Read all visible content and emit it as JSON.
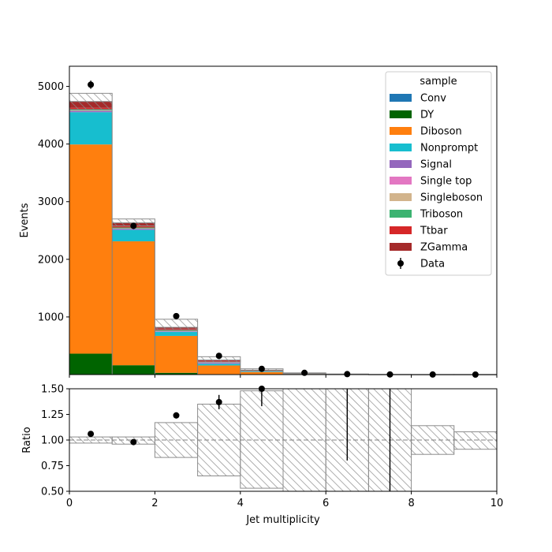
{
  "chart_data": {
    "type": "bar",
    "stacked": true,
    "x_edges": [
      0,
      1,
      2,
      3,
      4,
      5,
      6,
      7,
      8,
      9,
      10
    ],
    "xlabel": "Jet multiplicity",
    "xlim": [
      0,
      10
    ],
    "x_ticks": [
      0,
      2,
      4,
      6,
      8,
      10
    ],
    "main": {
      "ylabel": "Events",
      "ylim": [
        0,
        5350
      ],
      "y_ticks": [
        1000,
        2000,
        3000,
        4000,
        5000
      ],
      "series": [
        {
          "name": "Conv",
          "color": "#1f77b4",
          "values": [
            3,
            2,
            1,
            0,
            0,
            0,
            0,
            0,
            0,
            0
          ]
        },
        {
          "name": "DY",
          "color": "#006400",
          "values": [
            360,
            160,
            30,
            8,
            3,
            1,
            0,
            0,
            0,
            0
          ]
        },
        {
          "name": "Diboson",
          "color": "#ff7f0e",
          "values": [
            3630,
            2150,
            640,
            150,
            40,
            10,
            2,
            0,
            0,
            0
          ]
        },
        {
          "name": "Nonprompt",
          "color": "#17becf",
          "values": [
            560,
            200,
            70,
            30,
            10,
            2,
            1,
            0,
            0,
            0
          ]
        },
        {
          "name": "Signal",
          "color": "#9467bd",
          "values": [
            20,
            15,
            8,
            15,
            5,
            2,
            1,
            0,
            0,
            0
          ]
        },
        {
          "name": "Single top",
          "color": "#e377c2",
          "values": [
            5,
            5,
            5,
            6,
            3,
            1,
            0,
            0,
            0,
            0
          ]
        },
        {
          "name": "Singleboson",
          "color": "#d2b48c",
          "values": [
            5,
            5,
            2,
            2,
            1,
            0,
            0,
            0,
            0,
            0
          ]
        },
        {
          "name": "Triboson",
          "color": "#3cb371",
          "values": [
            15,
            15,
            10,
            10,
            4,
            2,
            0,
            0,
            0,
            0
          ]
        },
        {
          "name": "Ttbar",
          "color": "#d62728",
          "values": [
            30,
            30,
            30,
            20,
            8,
            2,
            1,
            0,
            0,
            0
          ]
        },
        {
          "name": "ZGamma",
          "color": "#a52a2a",
          "values": [
            110,
            50,
            24,
            10,
            3,
            1,
            0,
            0,
            0,
            0
          ]
        }
      ],
      "unc_band": {
        "lower": [
          4600,
          2580,
          780,
          220,
          60,
          16,
          4,
          0,
          0,
          0
        ],
        "upper": [
          4880,
          2700,
          960,
          310,
          100,
          30,
          10,
          3,
          1,
          1
        ]
      },
      "data": {
        "name": "Data",
        "x": [
          0.5,
          1.5,
          2.5,
          3.5,
          4.5,
          5.5,
          6.5,
          7.5,
          8.5,
          9.5
        ],
        "y": [
          5030,
          2580,
          1015,
          325,
          100,
          30,
          8,
          2,
          1,
          0
        ],
        "yerr": [
          71,
          51,
          32,
          18,
          10,
          5,
          3,
          1,
          1,
          0
        ]
      }
    },
    "ratio": {
      "ylabel": "Ratio",
      "ylim": [
        0.5,
        1.5
      ],
      "y_ticks": [
        "0.50",
        "0.75",
        "1.00",
        "1.25",
        "1.50"
      ],
      "reference_line": 1.0,
      "unc_band": {
        "lower": [
          0.97,
          0.96,
          0.83,
          0.65,
          0.53,
          0.5,
          0.5,
          0.5,
          0.86,
          0.91
        ],
        "upper": [
          1.03,
          1.03,
          1.17,
          1.35,
          1.48,
          1.5,
          1.5,
          1.5,
          1.14,
          1.08
        ]
      },
      "points": {
        "x": [
          0.5,
          1.5,
          2.5,
          3.5,
          4.5
        ],
        "y": [
          1.06,
          0.98,
          1.24,
          1.37,
          1.5
        ],
        "yerr": [
          0.015,
          0.02,
          0.03,
          0.07,
          0.17
        ]
      },
      "error_lines": [
        {
          "x": 6.5,
          "low": 0.8,
          "high": 1.5
        },
        {
          "x": 7.5,
          "low": 0.5,
          "high": 1.5
        }
      ]
    },
    "legend": {
      "title": "sample",
      "placement": "top-right",
      "entries": [
        "Conv",
        "DY",
        "Diboson",
        "Nonprompt",
        "Signal",
        "Single top",
        "Singleboson",
        "Triboson",
        "Ttbar",
        "ZGamma",
        "Data"
      ]
    }
  }
}
